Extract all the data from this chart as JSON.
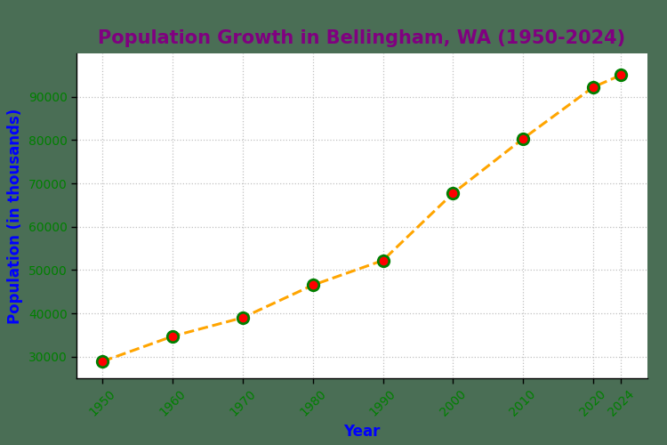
{
  "title": "Population Growth in Bellingham, WA (1950-2024)",
  "xlabel": "Year",
  "ylabel": "Population (in thousands)",
  "years": [
    1950,
    1960,
    1970,
    1980,
    1990,
    2000,
    2010,
    2020,
    2024
  ],
  "population": [
    28900,
    34700,
    39000,
    46500,
    52200,
    67700,
    80300,
    92200,
    95000
  ],
  "line_color": "orange",
  "marker_face_color": "red",
  "marker_edge_color": "green",
  "title_color": "purple",
  "xlabel_color": "blue",
  "ylabel_color": "blue",
  "tick_label_color": "green",
  "background_top": "#4a6e55",
  "background_plot": "white",
  "ylim": [
    25000,
    100000
  ],
  "grid_color": "#c0c0c0",
  "marker_size": 9,
  "line_width": 2.2,
  "title_fontsize": 15,
  "axis_label_fontsize": 12,
  "tick_fontsize": 10,
  "yticks": [
    30000,
    40000,
    50000,
    60000,
    70000,
    80000,
    90000
  ]
}
